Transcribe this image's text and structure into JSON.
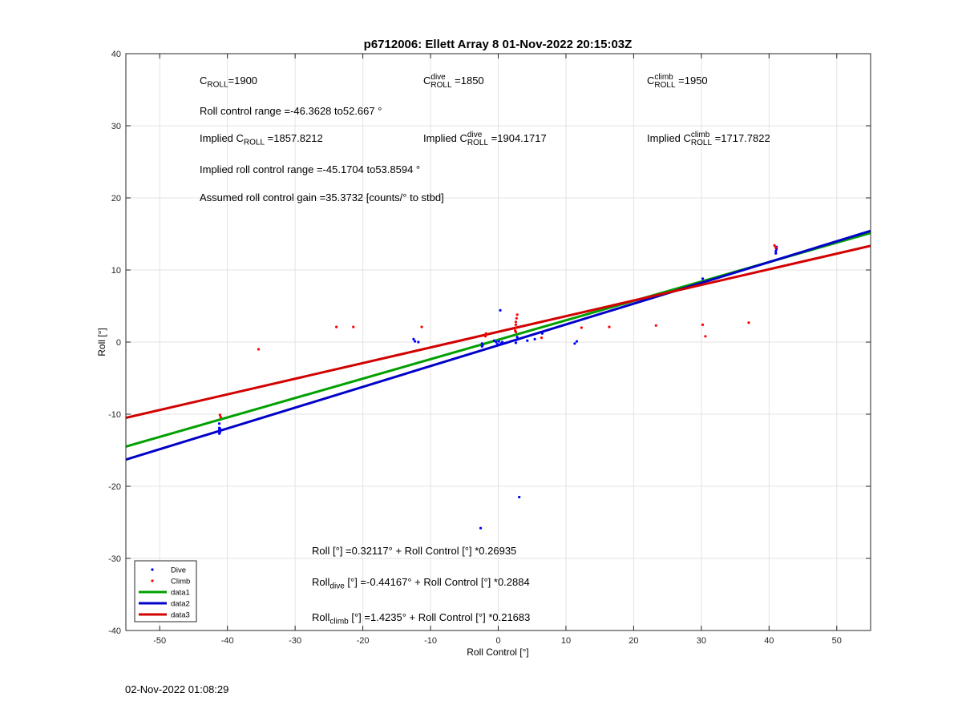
{
  "footer_timestamp": "02-Nov-2022 01:08:29",
  "annotations": {
    "c_roll_base": "C",
    "c_roll_sub": "ROLL",
    "c_roll_value": "=1900",
    "c_dive_sup": "dive",
    "c_dive_sub": "ROLL",
    "c_dive_value": "=1850",
    "c_climb_sup": "climb",
    "c_climb_sub": "ROLL",
    "c_climb_value": "=1950",
    "roll_range": "Roll control range =-46.3628 to52.667 °",
    "implied_c_prefix": "Implied C",
    "implied_c_value": "=1857.8212",
    "implied_dive_prefix": "Implied C",
    "implied_dive_value": "=1904.1717",
    "implied_climb_prefix": "Implied C",
    "implied_climb_value": "=1717.7822",
    "implied_range": "Implied roll control range =-45.1704 to53.8594 °",
    "gain": "Assumed roll control gain =35.3732 [counts/° to stbd]",
    "fit_all": "Roll [°] =0.32117° + Roll Control [°] *0.26935",
    "fit_dive_base": "Roll",
    "fit_dive_sub": "dive",
    "fit_dive_rest": " [°] =-0.44167° + Roll Control [°] *0.2884",
    "fit_climb_base": "Roll",
    "fit_climb_sub": "climb",
    "fit_climb_rest": " [°] =1.4235° + Roll Control [°] *0.21683"
  },
  "chart_data": {
    "type": "scatter",
    "title": "p6712006: Ellett Array 8 01-Nov-2022 20:15:03Z",
    "xlabel": "Roll Control [°]",
    "ylabel": "Roll [°]",
    "xlim": [
      -55,
      55
    ],
    "ylim": [
      -40,
      40
    ],
    "xticks": [
      -50,
      -40,
      -30,
      -20,
      -10,
      0,
      10,
      20,
      30,
      40,
      50
    ],
    "yticks": [
      -40,
      -30,
      -20,
      -10,
      0,
      10,
      20,
      30,
      40
    ],
    "grid": true,
    "legend_position": "bottom-left",
    "series": [
      {
        "name": "Dive",
        "kind": "points",
        "color": "#0000ff",
        "points": [
          [
            -41.2,
            -11.3
          ],
          [
            -41.2,
            -11.9
          ],
          [
            -41.2,
            -12.2
          ],
          [
            -41.1,
            -12.5
          ],
          [
            -41.2,
            -12.7
          ],
          [
            -41.1,
            -12.0
          ],
          [
            -12.5,
            0.4
          ],
          [
            -12.3,
            0.1
          ],
          [
            -11.8,
            0.0
          ],
          [
            -2.6,
            -25.8
          ],
          [
            -2.4,
            -0.2
          ],
          [
            -2.4,
            -0.6
          ],
          [
            -2.3,
            -0.4
          ],
          [
            -0.6,
            0.2
          ],
          [
            -0.3,
            0.0
          ],
          [
            -0.1,
            -0.3
          ],
          [
            0.1,
            0.1
          ],
          [
            0.3,
            4.4
          ],
          [
            0.4,
            -0.2
          ],
          [
            0.6,
            0.0
          ],
          [
            2.6,
            -0.1
          ],
          [
            2.7,
            0.3
          ],
          [
            2.8,
            0.7
          ],
          [
            3.1,
            -21.5
          ],
          [
            4.3,
            0.2
          ],
          [
            5.4,
            0.4
          ],
          [
            6.5,
            1.2
          ],
          [
            11.3,
            -0.2
          ],
          [
            11.6,
            0.1
          ],
          [
            30.2,
            8.8
          ],
          [
            41.0,
            12.3
          ],
          [
            41.0,
            12.6
          ],
          [
            41.1,
            12.9
          ],
          [
            41.0,
            13.1
          ],
          [
            41.1,
            13.2
          ]
        ]
      },
      {
        "name": "Climb",
        "kind": "points",
        "color": "#ff0000",
        "points": [
          [
            -41.1,
            -10.1
          ],
          [
            -41.0,
            -10.4
          ],
          [
            -35.4,
            -1.0
          ],
          [
            -23.9,
            2.1
          ],
          [
            -21.4,
            2.1
          ],
          [
            -11.3,
            2.1
          ],
          [
            -1.9,
            0.8
          ],
          [
            -1.8,
            1.0
          ],
          [
            -1.8,
            1.2
          ],
          [
            2.5,
            1.6
          ],
          [
            2.6,
            2.0
          ],
          [
            2.6,
            2.4
          ],
          [
            2.6,
            2.8
          ],
          [
            2.7,
            3.3
          ],
          [
            2.8,
            3.8
          ],
          [
            2.6,
            1.4
          ],
          [
            6.4,
            0.6
          ],
          [
            12.3,
            2.0
          ],
          [
            16.4,
            2.1
          ],
          [
            23.3,
            2.3
          ],
          [
            30.2,
            2.4
          ],
          [
            30.6,
            0.8
          ],
          [
            37.0,
            2.7
          ],
          [
            40.8,
            13.4
          ],
          [
            41.0,
            13.1
          ]
        ]
      },
      {
        "name": "data1",
        "kind": "line",
        "color": "#00a000",
        "intercept": 0.32117,
        "slope": 0.26935
      },
      {
        "name": "data2",
        "kind": "line",
        "color": "#0000c8",
        "intercept": -0.44167,
        "slope": 0.2884
      },
      {
        "name": "data3",
        "kind": "line",
        "color": "#d20000",
        "intercept": 1.4235,
        "slope": 0.21683
      }
    ]
  }
}
